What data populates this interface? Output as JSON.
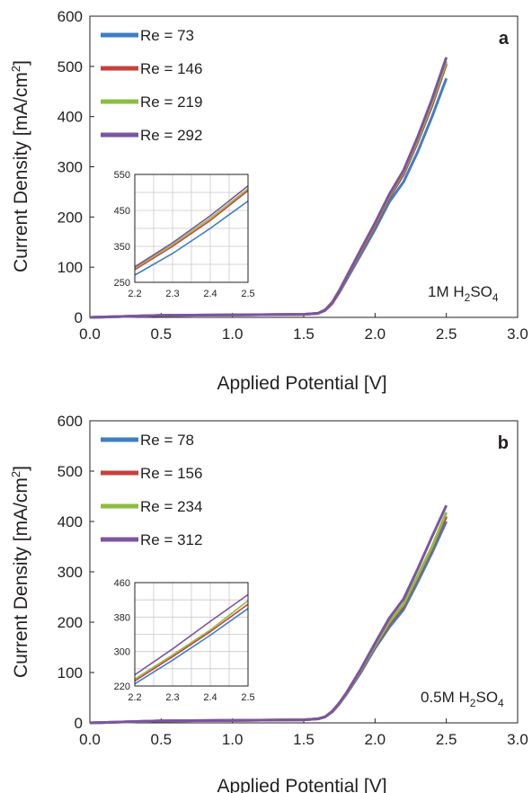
{
  "colors": {
    "blue": "#3d7fc4",
    "red": "#c5423c",
    "green": "#8dbd42",
    "purple": "#7b54a2",
    "axis": "#231f20",
    "grid": "#c8c8c8"
  },
  "chart_data": [
    {
      "type": "line",
      "panel_label": "a",
      "annotation": {
        "main": "1M H",
        "sub1": "2",
        "mid": "SO",
        "sub2": "4"
      },
      "xlabel": "Applied Potential [V]",
      "ylabel": "Current Density [mA/cm",
      "ylabel_sup": "2",
      "ylabel_end": "]",
      "xlim": [
        0,
        3
      ],
      "ylim": [
        0,
        600
      ],
      "xticks": [
        "0.0",
        "0.5",
        "1.0",
        "1.5",
        "2.0",
        "2.5",
        "3.0"
      ],
      "yticks": [
        "0",
        "100",
        "200",
        "300",
        "400",
        "500",
        "600"
      ],
      "x": [
        0,
        0.5,
        1.0,
        1.5,
        1.6,
        1.65,
        1.7,
        1.75,
        1.8,
        1.9,
        2.0,
        2.1,
        2.2,
        2.3,
        2.4,
        2.5
      ],
      "series": [
        {
          "name": "Re = 73",
          "color": "blue",
          "values": [
            0,
            4,
            5,
            6,
            8,
            14,
            28,
            50,
            75,
            125,
            175,
            230,
            270,
            330,
            400,
            476
          ]
        },
        {
          "name": "Re = 146",
          "color": "red",
          "values": [
            0,
            4,
            5,
            6,
            8,
            14,
            28,
            52,
            78,
            130,
            182,
            238,
            285,
            350,
            422,
            505
          ]
        },
        {
          "name": "Re = 219",
          "color": "green",
          "values": [
            0,
            4,
            5,
            6,
            8,
            15,
            30,
            54,
            80,
            133,
            186,
            242,
            290,
            355,
            428,
            510
          ]
        },
        {
          "name": "Re = 292",
          "color": "purple",
          "values": [
            0,
            4,
            5,
            6,
            8,
            15,
            30,
            54,
            81,
            135,
            188,
            245,
            293,
            360,
            435,
            518
          ]
        }
      ],
      "inset": {
        "xlim": [
          2.2,
          2.5
        ],
        "ylim": [
          250,
          550
        ],
        "xticks": [
          "2.2",
          "2.3",
          "2.4",
          "2.5"
        ],
        "yticks": [
          "250",
          "350",
          "450",
          "550"
        ],
        "x": [
          2.2,
          2.3,
          2.4,
          2.5
        ],
        "series": [
          {
            "color": "blue",
            "values": [
              270,
              330,
              400,
              476
            ]
          },
          {
            "color": "red",
            "values": [
              285,
              350,
              422,
              505
            ]
          },
          {
            "color": "green",
            "values": [
              290,
              355,
              428,
              510
            ]
          },
          {
            "color": "purple",
            "values": [
              293,
              360,
              435,
              518
            ]
          }
        ]
      }
    },
    {
      "type": "line",
      "panel_label": "b",
      "annotation": {
        "main": "0.5M H",
        "sub1": "2",
        "mid": "SO",
        "sub2": "4"
      },
      "xlabel": "Applied Potential [V]",
      "ylabel": "Current Density [mA/cm",
      "ylabel_sup": "2",
      "ylabel_end": "]",
      "xlim": [
        0,
        3
      ],
      "ylim": [
        0,
        600
      ],
      "xticks": [
        "0.0",
        "0.5",
        "1.0",
        "1.5",
        "2.0",
        "2.5",
        "3.0"
      ],
      "yticks": [
        "0",
        "100",
        "200",
        "300",
        "400",
        "500",
        "600"
      ],
      "x": [
        0,
        0.5,
        1.0,
        1.5,
        1.6,
        1.65,
        1.7,
        1.75,
        1.8,
        1.9,
        2.0,
        2.1,
        2.2,
        2.3,
        2.4,
        2.5
      ],
      "series": [
        {
          "name": "Re = 78",
          "color": "blue",
          "values": [
            0,
            4,
            5,
            6,
            8,
            12,
            22,
            38,
            57,
            100,
            148,
            190,
            225,
            280,
            338,
            400
          ]
        },
        {
          "name": "Re = 156",
          "color": "red",
          "values": [
            0,
            4,
            5,
            6,
            8,
            12,
            22,
            38,
            58,
            103,
            152,
            196,
            232,
            288,
            346,
            410
          ]
        },
        {
          "name": "Re = 234",
          "color": "green",
          "values": [
            0,
            4,
            5,
            6,
            8,
            12,
            23,
            39,
            59,
            105,
            154,
            200,
            236,
            292,
            350,
            418
          ]
        },
        {
          "name": "Re = 312",
          "color": "purple",
          "values": [
            0,
            4,
            5,
            6,
            8,
            12,
            23,
            40,
            60,
            107,
            158,
            208,
            246,
            306,
            370,
            432
          ]
        }
      ],
      "inset": {
        "xlim": [
          2.2,
          2.5
        ],
        "ylim": [
          220,
          460
        ],
        "xticks": [
          "2.2",
          "2.3",
          "2.4",
          "2.5"
        ],
        "yticks": [
          "220",
          "300",
          "380",
          "460"
        ],
        "x": [
          2.2,
          2.3,
          2.4,
          2.5
        ],
        "series": [
          {
            "color": "blue",
            "values": [
              225,
              280,
              338,
              400
            ]
          },
          {
            "color": "red",
            "values": [
              232,
              288,
              346,
              410
            ]
          },
          {
            "color": "green",
            "values": [
              236,
              292,
              350,
              418
            ]
          },
          {
            "color": "purple",
            "values": [
              246,
              306,
              370,
              432
            ]
          }
        ]
      }
    }
  ]
}
